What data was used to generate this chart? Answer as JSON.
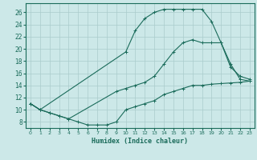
{
  "xlabel": "Humidex (Indice chaleur)",
  "bg_color": "#cce8e8",
  "grid_color": "#aacccc",
  "line_color": "#1a6b5a",
  "xlim": [
    -0.5,
    23.5
  ],
  "ylim": [
    7,
    27.5
  ],
  "xticks": [
    0,
    1,
    2,
    3,
    4,
    5,
    6,
    7,
    8,
    9,
    10,
    11,
    12,
    13,
    14,
    15,
    16,
    17,
    18,
    19,
    20,
    21,
    22,
    23
  ],
  "yticks": [
    8,
    10,
    12,
    14,
    16,
    18,
    20,
    22,
    24,
    26
  ],
  "curve1_x": [
    0,
    1,
    2,
    3,
    4,
    5,
    6,
    7,
    8,
    9,
    10,
    11,
    12,
    13,
    14,
    15,
    16,
    17,
    18,
    19,
    20,
    21,
    22,
    23
  ],
  "curve1_y": [
    11,
    10,
    9.5,
    9,
    8.5,
    8,
    7.5,
    7.5,
    7.5,
    8,
    10,
    10.5,
    11,
    11.5,
    12.5,
    13,
    13.5,
    14,
    14,
    14.2,
    14.3,
    14.4,
    14.5,
    14.7
  ],
  "curve2_x": [
    0,
    1,
    2,
    3,
    4,
    9,
    10,
    11,
    12,
    13,
    14,
    15,
    16,
    17,
    18,
    19,
    20,
    21,
    22,
    23
  ],
  "curve2_y": [
    11,
    10,
    9.5,
    9,
    8.5,
    13,
    13.5,
    14,
    14.5,
    15.5,
    17.5,
    19.5,
    21,
    21.5,
    21,
    21,
    21,
    17.5,
    15,
    14.7
  ],
  "curve3_x": [
    0,
    1,
    10,
    11,
    12,
    13,
    14,
    15,
    16,
    17,
    18,
    19,
    20,
    21,
    22,
    23
  ],
  "curve3_y": [
    11,
    10,
    19.5,
    23,
    25,
    26,
    26.5,
    26.5,
    26.5,
    26.5,
    26.5,
    24.5,
    21,
    17,
    15.5,
    15
  ]
}
